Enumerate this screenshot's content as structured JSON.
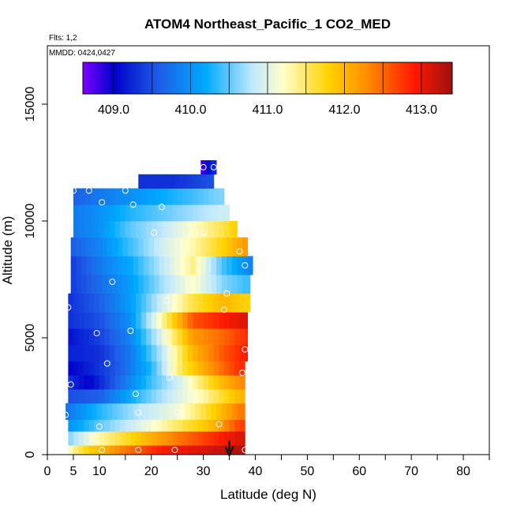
{
  "chart_data": {
    "type": "heatmap",
    "title": "ATOM4 Northeast_Pacific_1 CO2_MED",
    "flights_note": "Flts: 1,2",
    "date_note": "MMDD: 0424,0427",
    "xlabel": "Latitude (deg N)",
    "ylabel": "Altitude (m)",
    "xlim": [
      0,
      85
    ],
    "ylim": [
      0,
      17500
    ],
    "x_tick_labels": [
      "0",
      "5",
      "10",
      "20",
      "30",
      "40",
      "50",
      "60",
      "70",
      "80"
    ],
    "x_tick_values": [
      0,
      5,
      10,
      20,
      30,
      40,
      50,
      60,
      70,
      80
    ],
    "y_tick_labels": [
      "0",
      "5000",
      "10000",
      "15000"
    ],
    "y_tick_values": [
      0,
      5000,
      10000,
      15000
    ],
    "colorbar": {
      "min": 408.6,
      "max": 413.4,
      "labels": [
        "409.0",
        "410.0",
        "411.0",
        "412.0",
        "413.0"
      ],
      "label_values": [
        409.0,
        410.0,
        411.0,
        412.0,
        413.0
      ],
      "colors": [
        "#7f00ff",
        "#0000cc",
        "#1f5fe8",
        "#00aaff",
        "#bfe8ff",
        "#ffffcc",
        "#ffd200",
        "#ff8c00",
        "#ff1a00",
        "#a01010"
      ],
      "color_stops": [
        408.6,
        409.0,
        409.6,
        410.2,
        410.8,
        411.2,
        411.8,
        412.3,
        412.9,
        413.4
      ]
    },
    "grid": false,
    "data_layers": [
      {
        "alt_max": 400,
        "lat_min": 4,
        "lat_max": 38,
        "values": [
          [
            4,
            411.2
          ],
          [
            8,
            411.8
          ],
          [
            15,
            412.4
          ],
          [
            22,
            412.9
          ],
          [
            30,
            413.1
          ],
          [
            36,
            413.3
          ]
        ]
      },
      {
        "alt_max": 1000,
        "lat_min": 4,
        "lat_max": 38,
        "values": [
          [
            4,
            410.6
          ],
          [
            10,
            411.3
          ],
          [
            18,
            411.9
          ],
          [
            25,
            412.4
          ],
          [
            32,
            412.8
          ],
          [
            37,
            413.1
          ]
        ]
      },
      {
        "alt_max": 1500,
        "lat_min": 4,
        "lat_max": 38,
        "values": [
          [
            4,
            410.0
          ],
          [
            10,
            410.5
          ],
          [
            18,
            411.0
          ],
          [
            25,
            411.5
          ],
          [
            32,
            412.0
          ],
          [
            37,
            412.7
          ]
        ]
      },
      {
        "alt_max": 2200,
        "lat_min": 3.5,
        "lat_max": 38,
        "values": [
          [
            4,
            409.8
          ],
          [
            10,
            410.3
          ],
          [
            18,
            410.8
          ],
          [
            25,
            411.1
          ],
          [
            32,
            411.8
          ],
          [
            37,
            412.4
          ]
        ]
      },
      {
        "alt_max": 2800,
        "lat_min": 4,
        "lat_max": 38,
        "values": [
          [
            4,
            409.5
          ],
          [
            10,
            409.6
          ],
          [
            18,
            410.4
          ],
          [
            24,
            410.9
          ],
          [
            30,
            411.3
          ],
          [
            37,
            412.0
          ]
        ]
      },
      {
        "alt_max": 3400,
        "lat_min": 4,
        "lat_max": 38,
        "values": [
          [
            4,
            409.3
          ],
          [
            8,
            409.0
          ],
          [
            14,
            409.7
          ],
          [
            20,
            410.4
          ],
          [
            26,
            411.0
          ],
          [
            32,
            411.8
          ],
          [
            37,
            412.3
          ]
        ]
      },
      {
        "alt_max": 4000,
        "lat_min": 4,
        "lat_max": 38,
        "values": [
          [
            4,
            409.0
          ],
          [
            8,
            409.2
          ],
          [
            14,
            409.6
          ],
          [
            20,
            410.3
          ],
          [
            26,
            411.6
          ],
          [
            32,
            412.3
          ],
          [
            37,
            412.8
          ]
        ]
      },
      {
        "alt_max": 4700,
        "lat_min": 4,
        "lat_max": 38.5,
        "values": [
          [
            4,
            409.2
          ],
          [
            10,
            409.3
          ],
          [
            16,
            409.8
          ],
          [
            22,
            410.8
          ],
          [
            28,
            412.0
          ],
          [
            34,
            412.6
          ],
          [
            38,
            412.9
          ]
        ]
      },
      {
        "alt_max": 5400,
        "lat_min": 4,
        "lat_max": 38.5,
        "values": [
          [
            4,
            409.1
          ],
          [
            10,
            409.4
          ],
          [
            16,
            409.9
          ],
          [
            22,
            411.0
          ],
          [
            28,
            412.2
          ],
          [
            34,
            412.5
          ],
          [
            38,
            412.8
          ]
        ]
      },
      {
        "alt_max": 6100,
        "lat_min": 4,
        "lat_max": 38.5,
        "values": [
          [
            4,
            409.3
          ],
          [
            10,
            409.5
          ],
          [
            16,
            410.0
          ],
          [
            22,
            411.3
          ],
          [
            28,
            412.6
          ],
          [
            34,
            412.9
          ],
          [
            38,
            413.1
          ]
        ]
      },
      {
        "alt_max": 6900,
        "lat_min": 4,
        "lat_max": 39,
        "values": [
          [
            4,
            409.3
          ],
          [
            10,
            409.6
          ],
          [
            16,
            410.1
          ],
          [
            22,
            410.9
          ],
          [
            28,
            411.6
          ],
          [
            34,
            412.0
          ],
          [
            38,
            411.8
          ]
        ]
      },
      {
        "alt_max": 7700,
        "lat_min": 4.5,
        "lat_max": 39,
        "values": [
          [
            5,
            409.4
          ],
          [
            10,
            409.7
          ],
          [
            16,
            410.1
          ],
          [
            22,
            410.7
          ],
          [
            28,
            411.2
          ],
          [
            34,
            410.6
          ],
          [
            38,
            410.4
          ]
        ]
      },
      {
        "alt_max": 8500,
        "lat_min": 4.5,
        "lat_max": 39.5,
        "values": [
          [
            5,
            409.4
          ],
          [
            10,
            409.8
          ],
          [
            16,
            410.2
          ],
          [
            22,
            410.8
          ],
          [
            28,
            411.4
          ],
          [
            34,
            410.4
          ],
          [
            39,
            409.9
          ]
        ]
      },
      {
        "alt_max": 9300,
        "lat_min": 4.5,
        "lat_max": 38.5,
        "values": [
          [
            5,
            409.6
          ],
          [
            10,
            409.9
          ],
          [
            16,
            410.4
          ],
          [
            22,
            410.9
          ],
          [
            28,
            411.3
          ],
          [
            34,
            411.8
          ],
          [
            38,
            412.2
          ]
        ]
      },
      {
        "alt_max": 10000,
        "lat_min": 5,
        "lat_max": 36.5,
        "values": [
          [
            5,
            409.8
          ],
          [
            10,
            410.0
          ],
          [
            16,
            410.5
          ],
          [
            22,
            410.8
          ],
          [
            28,
            411.2
          ],
          [
            34,
            411.6
          ],
          [
            36,
            411.8
          ]
        ]
      },
      {
        "alt_max": 10700,
        "lat_min": 5,
        "lat_max": 35,
        "values": [
          [
            5,
            409.8
          ],
          [
            10,
            410.0
          ],
          [
            16,
            410.3
          ],
          [
            22,
            410.5
          ],
          [
            28,
            410.7
          ],
          [
            34,
            410.9
          ]
        ]
      },
      {
        "alt_max": 11400,
        "lat_min": 5,
        "lat_max": 34,
        "values": [
          [
            5,
            409.6
          ],
          [
            10,
            409.8
          ],
          [
            16,
            410.0
          ],
          [
            22,
            410.2
          ],
          [
            28,
            410.4
          ],
          [
            33,
            410.6
          ]
        ]
      },
      {
        "alt_max": 12000,
        "lat_min": 17.5,
        "lat_max": 32,
        "values": [
          [
            18,
            409.3
          ],
          [
            24,
            409.3
          ],
          [
            28,
            409.4
          ],
          [
            31,
            409.5
          ]
        ]
      },
      {
        "alt_max": 12600,
        "lat_min": 29.5,
        "lat_max": 32.5,
        "values": [
          [
            29.5,
            408.7
          ],
          [
            31,
            409.1
          ],
          [
            32.5,
            409.3
          ]
        ]
      }
    ],
    "sample_points": [
      [
        4,
        200
      ],
      [
        10.5,
        200
      ],
      [
        17.5,
        200
      ],
      [
        24.5,
        200
      ],
      [
        38,
        200
      ],
      [
        3.5,
        1700
      ],
      [
        10,
        1200
      ],
      [
        17.5,
        1800
      ],
      [
        25,
        1800
      ],
      [
        33,
        1300
      ],
      [
        4.5,
        3000
      ],
      [
        17,
        2600
      ],
      [
        23.5,
        3300
      ],
      [
        37.5,
        3500
      ],
      [
        11.5,
        3900
      ],
      [
        9.5,
        5200
      ],
      [
        16,
        5300
      ],
      [
        38,
        4500
      ],
      [
        4,
        6300
      ],
      [
        34,
        6200
      ],
      [
        23,
        6600
      ],
      [
        34.5,
        6900
      ],
      [
        12.5,
        7400
      ],
      [
        38,
        8100
      ],
      [
        37,
        8700
      ],
      [
        20.5,
        9500
      ],
      [
        30,
        9500
      ],
      [
        16.5,
        10700
      ],
      [
        22,
        10600
      ],
      [
        10.5,
        10800
      ],
      [
        5,
        11300
      ],
      [
        8,
        11300
      ],
      [
        15,
        11300
      ],
      [
        32,
        12300
      ],
      [
        30,
        12300
      ]
    ],
    "arrow_marker": {
      "lat": 35,
      "alt_top": 600,
      "alt_bottom": 0
    }
  }
}
